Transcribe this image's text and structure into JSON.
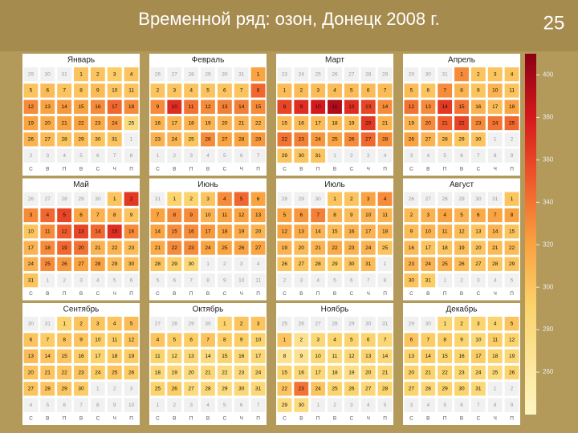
{
  "chart_data": {
    "type": "calendar_heatmap",
    "title": "Временной ряд: озон, Донецк 2008 г.",
    "page_number": "25",
    "weekdays": [
      "С",
      "В",
      "П",
      "В",
      "С",
      "Ч",
      "П"
    ],
    "zlim": [
      240,
      410
    ],
    "zticks": [
      400,
      380,
      360,
      340,
      320,
      300,
      280,
      260
    ],
    "months": [
      {
        "name": "Январь",
        "days": [
          29,
          30,
          31,
          1,
          2,
          3,
          4,
          5,
          6,
          7,
          8,
          9,
          10,
          11,
          12,
          13,
          14,
          15,
          16,
          17,
          18,
          19,
          20,
          21,
          22,
          23,
          24,
          25,
          26,
          27,
          28,
          29,
          30,
          31,
          1,
          2,
          3,
          4,
          5,
          6,
          7,
          8
        ],
        "values": [
          null,
          null,
          null,
          300,
          300,
          295,
          300,
          300,
          305,
          300,
          300,
          305,
          300,
          300,
          330,
          320,
          325,
          320,
          330,
          345,
          330,
          320,
          315,
          320,
          320,
          315,
          325,
          280,
          310,
          305,
          300,
          305,
          300,
          300,
          null,
          null,
          null,
          null,
          null,
          null,
          null,
          null
        ]
      },
      {
        "name": "Февраль",
        "days": [
          26,
          27,
          28,
          29,
          30,
          31,
          1,
          2,
          3,
          4,
          5,
          6,
          7,
          8,
          9,
          10,
          11,
          12,
          13,
          14,
          15,
          16,
          17,
          18,
          19,
          20,
          21,
          22,
          23,
          24,
          25,
          26,
          27,
          28,
          29,
          1,
          2,
          3,
          4,
          5,
          6,
          7
        ],
        "values": [
          null,
          null,
          null,
          null,
          null,
          null,
          320,
          300,
          300,
          300,
          300,
          300,
          300,
          345,
          330,
          370,
          340,
          330,
          335,
          335,
          330,
          310,
          310,
          310,
          310,
          310,
          310,
          310,
          310,
          310,
          300,
          330,
          320,
          320,
          325,
          null,
          null,
          null,
          null,
          null,
          null,
          null
        ]
      },
      {
        "name": "Март",
        "days": [
          23,
          24,
          25,
          26,
          27,
          28,
          29,
          1,
          2,
          3,
          4,
          5,
          6,
          7,
          8,
          9,
          10,
          11,
          12,
          13,
          14,
          15,
          16,
          17,
          18,
          19,
          20,
          21,
          22,
          23,
          24,
          25,
          26,
          27,
          28,
          29,
          30,
          31,
          1,
          2,
          3,
          4
        ],
        "values": [
          null,
          null,
          null,
          null,
          null,
          null,
          null,
          305,
          305,
          305,
          305,
          305,
          305,
          305,
          360,
          370,
          380,
          395,
          370,
          360,
          330,
          305,
          305,
          305,
          305,
          305,
          365,
          310,
          340,
          335,
          325,
          320,
          330,
          345,
          330,
          300,
          300,
          300,
          null,
          null,
          null,
          null
        ]
      },
      {
        "name": "Апрель",
        "days": [
          29,
          30,
          31,
          1,
          2,
          3,
          4,
          5,
          6,
          7,
          8,
          9,
          10,
          11,
          12,
          13,
          14,
          15,
          16,
          17,
          18,
          19,
          20,
          21,
          22,
          23,
          24,
          25,
          26,
          27,
          28,
          29,
          30,
          1,
          2,
          3,
          4,
          5,
          6,
          7,
          8,
          9
        ],
        "values": [
          null,
          null,
          null,
          330,
          300,
          300,
          300,
          305,
          300,
          330,
          310,
          300,
          310,
          300,
          340,
          330,
          365,
          340,
          310,
          305,
          320,
          310,
          330,
          350,
          360,
          330,
          340,
          345,
          320,
          310,
          305,
          300,
          300,
          null,
          null,
          null,
          null,
          null,
          null,
          null,
          null,
          null
        ]
      },
      {
        "name": "Май",
        "days": [
          26,
          27,
          28,
          29,
          30,
          1,
          2,
          3,
          4,
          5,
          6,
          7,
          8,
          9,
          10,
          11,
          12,
          13,
          14,
          15,
          16,
          17,
          18,
          19,
          20,
          21,
          22,
          23,
          24,
          25,
          26,
          27,
          28,
          29,
          30,
          31,
          1,
          2,
          3,
          4,
          5,
          6
        ],
        "values": [
          null,
          null,
          null,
          null,
          null,
          300,
          365,
          330,
          345,
          360,
          320,
          310,
          310,
          300,
          300,
          330,
          350,
          360,
          345,
          370,
          330,
          310,
          330,
          345,
          340,
          310,
          310,
          305,
          310,
          330,
          325,
          320,
          320,
          305,
          305,
          300,
          null,
          null,
          null,
          null,
          null,
          null
        ]
      },
      {
        "name": "Июнь",
        "days": [
          31,
          1,
          2,
          3,
          4,
          5,
          6,
          7,
          8,
          9,
          10,
          11,
          12,
          13,
          14,
          15,
          16,
          17,
          18,
          19,
          20,
          21,
          22,
          23,
          24,
          25,
          26,
          27,
          28,
          29,
          30,
          1,
          2,
          3,
          4,
          5,
          6,
          7,
          8,
          9,
          10,
          11
        ],
        "values": [
          null,
          290,
          290,
          300,
          330,
          345,
          320,
          320,
          330,
          330,
          310,
          320,
          320,
          320,
          320,
          330,
          330,
          325,
          320,
          315,
          310,
          315,
          330,
          330,
          320,
          320,
          320,
          320,
          300,
          295,
          285,
          null,
          null,
          null,
          null,
          null,
          null,
          null,
          null,
          null,
          null,
          null
        ]
      },
      {
        "name": "Июль",
        "days": [
          28,
          29,
          30,
          1,
          2,
          3,
          4,
          5,
          6,
          7,
          8,
          9,
          10,
          11,
          12,
          13,
          14,
          15,
          16,
          17,
          18,
          19,
          20,
          21,
          22,
          23,
          24,
          25,
          26,
          27,
          28,
          29,
          30,
          31,
          1,
          2,
          3,
          4,
          5,
          6,
          7,
          8
        ],
        "values": [
          null,
          null,
          null,
          300,
          300,
          320,
          330,
          320,
          325,
          335,
          310,
          305,
          310,
          310,
          320,
          315,
          310,
          305,
          310,
          310,
          310,
          310,
          305,
          310,
          315,
          310,
          310,
          300,
          300,
          300,
          300,
          295,
          300,
          305,
          null,
          null,
          null,
          null,
          null,
          null,
          null,
          null
        ]
      },
      {
        "name": "Август",
        "days": [
          26,
          27,
          28,
          29,
          30,
          31,
          1,
          2,
          3,
          4,
          5,
          6,
          7,
          8,
          9,
          10,
          11,
          12,
          13,
          14,
          15,
          16,
          17,
          18,
          19,
          20,
          21,
          22,
          23,
          24,
          25,
          26,
          27,
          28,
          29,
          30,
          31,
          1,
          2,
          3,
          4,
          5
        ],
        "values": [
          null,
          null,
          null,
          null,
          null,
          null,
          300,
          305,
          310,
          320,
          310,
          315,
          320,
          320,
          305,
          310,
          310,
          305,
          300,
          310,
          300,
          305,
          300,
          300,
          305,
          300,
          305,
          305,
          310,
          310,
          310,
          305,
          300,
          300,
          300,
          300,
          295,
          null,
          null,
          null,
          null,
          null
        ]
      },
      {
        "name": "Сентябрь",
        "days": [
          30,
          31,
          1,
          2,
          3,
          4,
          5,
          6,
          7,
          8,
          9,
          10,
          11,
          12,
          13,
          14,
          15,
          16,
          17,
          18,
          19,
          20,
          21,
          22,
          23,
          24,
          25,
          26,
          27,
          28,
          29,
          30,
          1,
          2,
          3,
          4,
          5,
          6,
          7,
          8,
          9,
          10
        ],
        "values": [
          null,
          null,
          290,
          300,
          300,
          300,
          305,
          300,
          295,
          300,
          300,
          295,
          295,
          300,
          305,
          300,
          300,
          295,
          290,
          295,
          295,
          300,
          300,
          300,
          300,
          295,
          300,
          295,
          300,
          300,
          300,
          295,
          null,
          null,
          null,
          null,
          null,
          null,
          null,
          null,
          null,
          null
        ]
      },
      {
        "name": "Октябрь",
        "days": [
          27,
          28,
          29,
          30,
          1,
          2,
          3,
          4,
          5,
          6,
          7,
          8,
          9,
          10,
          11,
          12,
          13,
          14,
          15,
          16,
          17,
          18,
          19,
          20,
          21,
          22,
          23,
          24,
          25,
          26,
          27,
          28,
          29,
          30,
          31,
          1,
          2,
          3,
          4,
          5,
          6,
          7
        ],
        "values": [
          null,
          null,
          null,
          null,
          290,
          300,
          300,
          300,
          295,
          295,
          300,
          295,
          295,
          290,
          290,
          285,
          285,
          280,
          290,
          285,
          285,
          285,
          285,
          280,
          285,
          280,
          280,
          285,
          290,
          295,
          280,
          285,
          280,
          285,
          285,
          null,
          null,
          null,
          null,
          null,
          null,
          null
        ]
      },
      {
        "name": "Ноябрь",
        "days": [
          25,
          26,
          27,
          28,
          29,
          30,
          31,
          1,
          2,
          3,
          4,
          5,
          6,
          7,
          8,
          9,
          10,
          11,
          12,
          13,
          14,
          15,
          16,
          17,
          18,
          19,
          20,
          21,
          22,
          23,
          24,
          25,
          26,
          27,
          28,
          29,
          30,
          1,
          2,
          3,
          4,
          5
        ],
        "values": [
          null,
          null,
          null,
          null,
          null,
          null,
          null,
          300,
          270,
          285,
          290,
          290,
          290,
          285,
          270,
          270,
          285,
          280,
          285,
          290,
          285,
          290,
          285,
          285,
          280,
          275,
          285,
          285,
          300,
          340,
          300,
          290,
          290,
          285,
          290,
          280,
          280,
          null,
          null,
          null,
          null,
          null
        ]
      },
      {
        "name": "Декабрь",
        "days": [
          29,
          30,
          1,
          2,
          3,
          4,
          5,
          6,
          7,
          8,
          9,
          10,
          11,
          12,
          13,
          14,
          15,
          16,
          17,
          18,
          19,
          20,
          21,
          22,
          23,
          24,
          25,
          26,
          27,
          28,
          29,
          30,
          31,
          1,
          2,
          3,
          4,
          5,
          6,
          7,
          8,
          9
        ],
        "values": [
          null,
          null,
          285,
          290,
          290,
          290,
          300,
          300,
          295,
          295,
          290,
          285,
          295,
          290,
          290,
          295,
          290,
          290,
          295,
          290,
          285,
          290,
          290,
          290,
          285,
          285,
          280,
          290,
          290,
          285,
          290,
          290,
          285,
          null,
          null,
          null,
          null,
          null,
          null,
          null,
          null,
          null
        ]
      }
    ]
  }
}
